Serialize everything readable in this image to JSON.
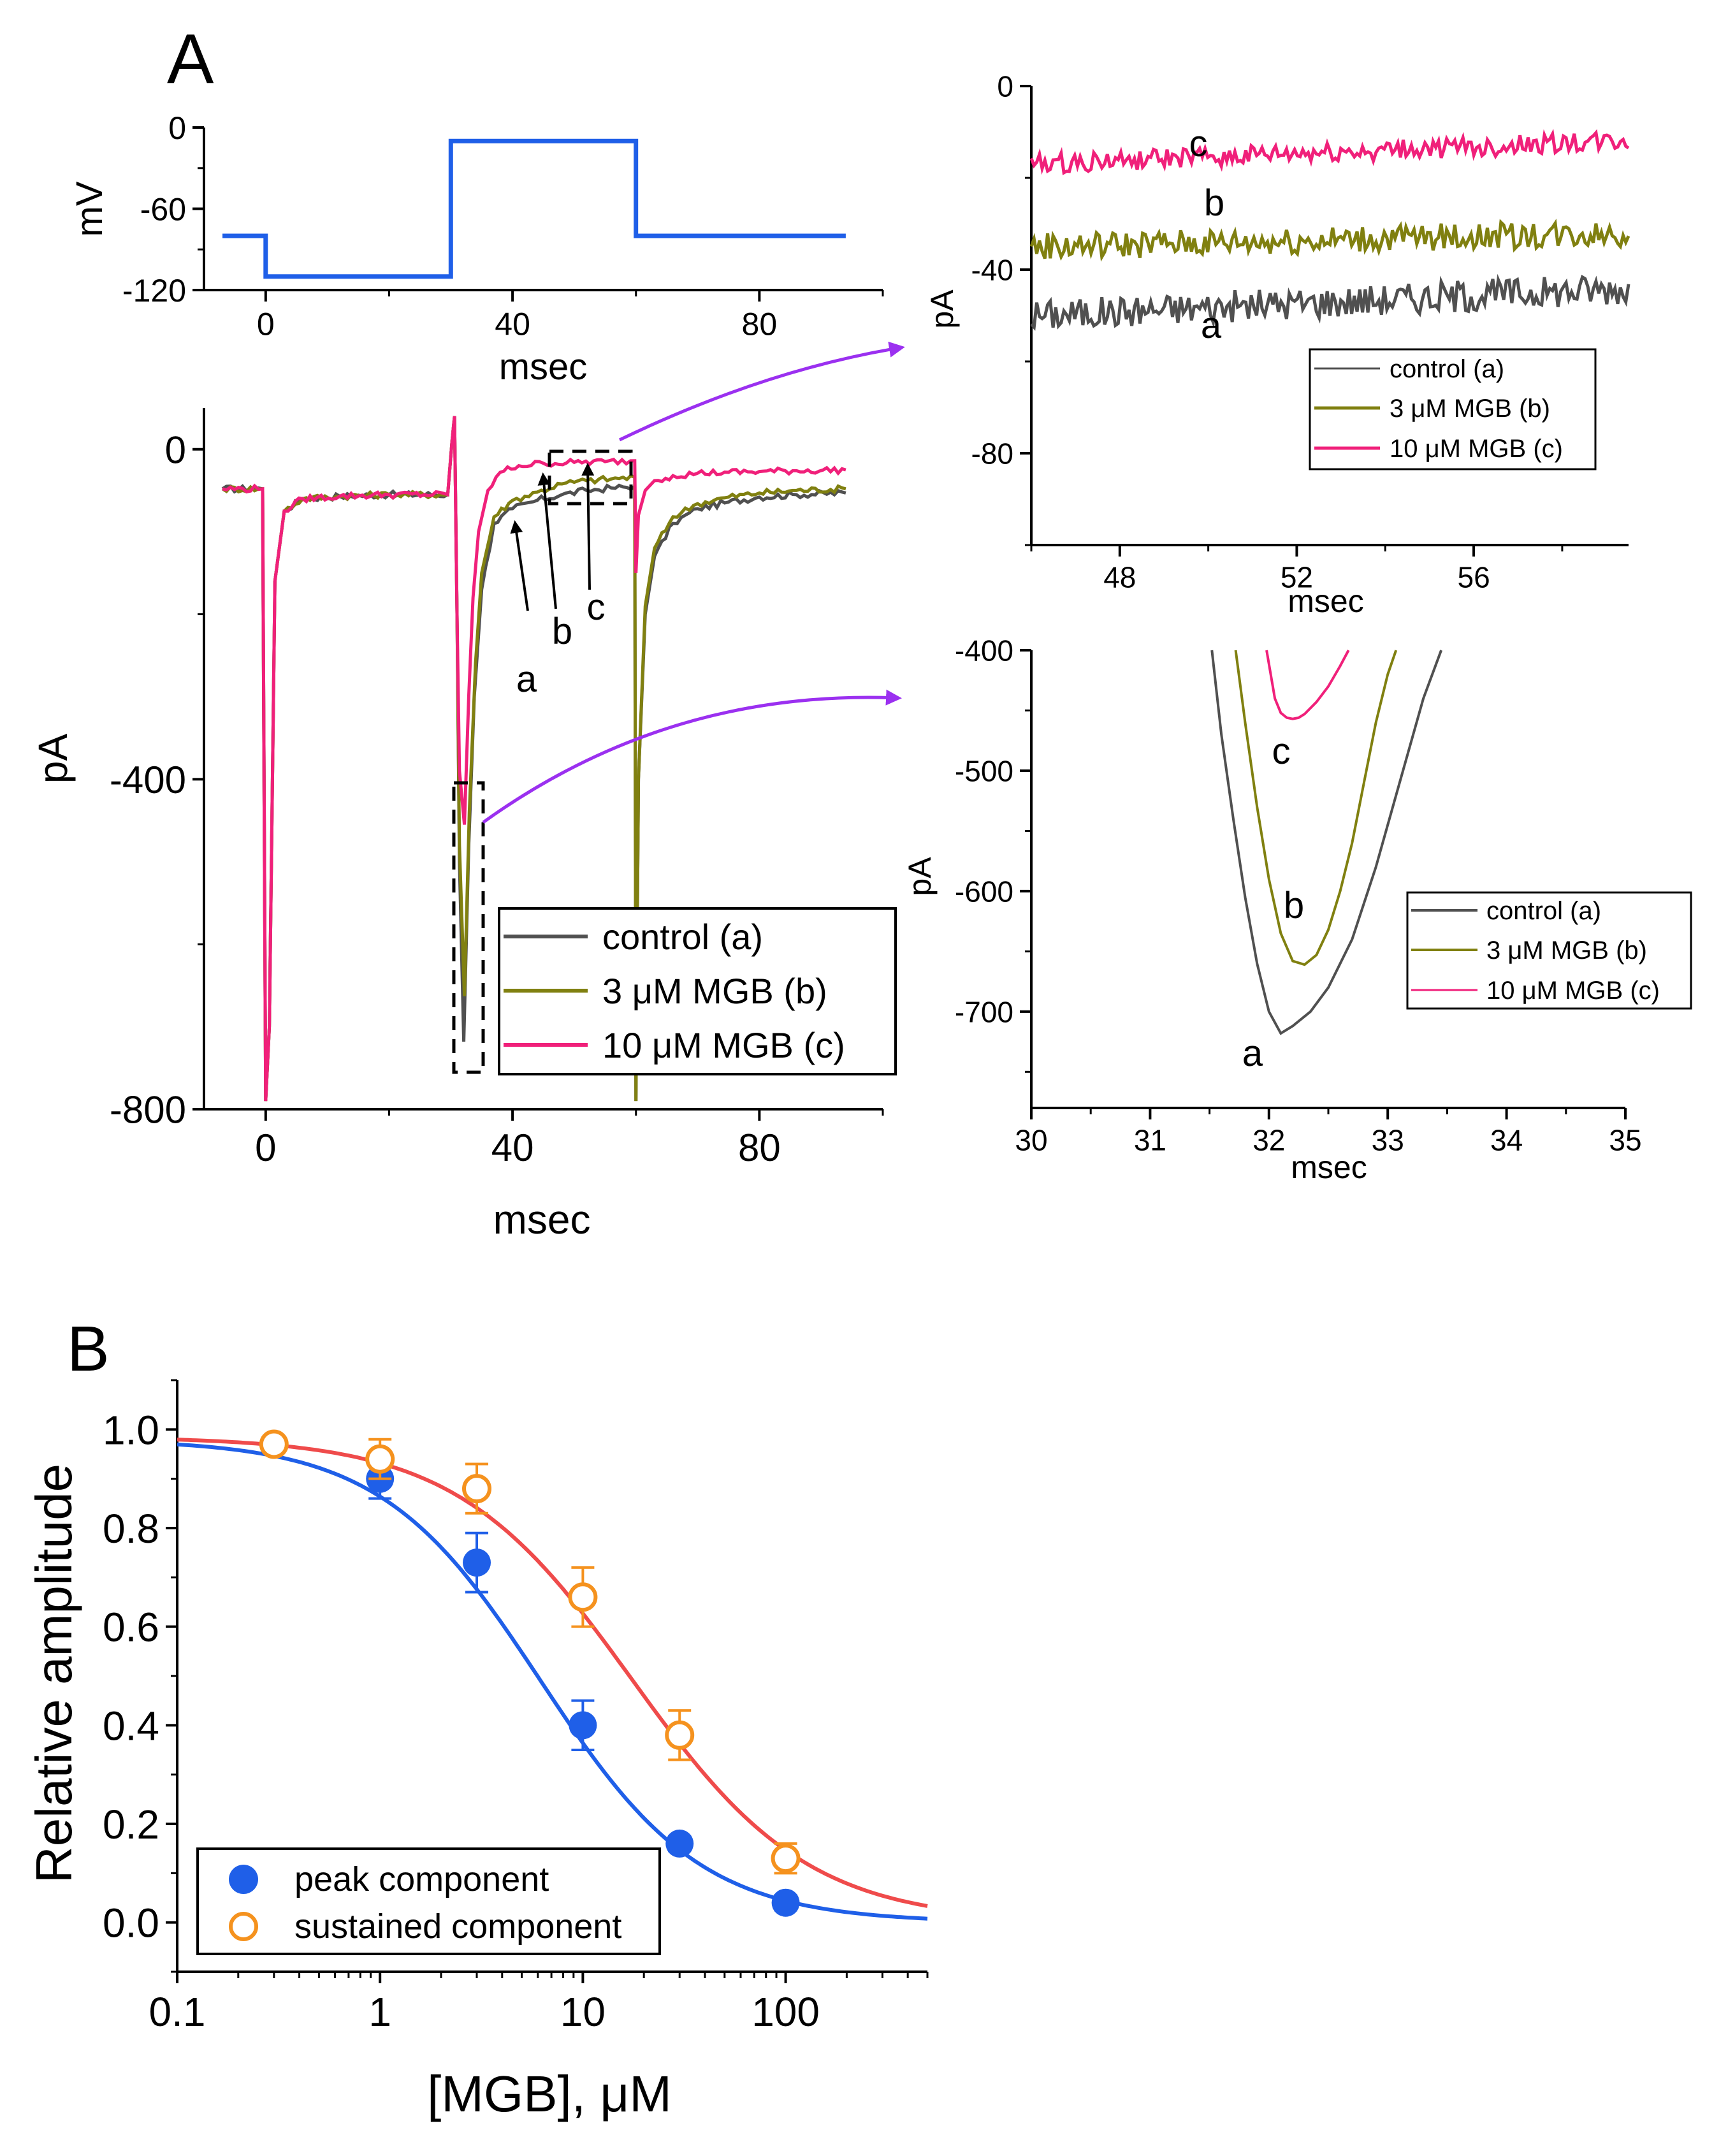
{
  "panel_labels": {
    "a": "A",
    "b": "B"
  },
  "colors": {
    "blue": "#1f5fe8",
    "control": "#505050",
    "mgb3": "#808010",
    "mgb10": "#f0207a",
    "arrow": "#9b30f0",
    "fit_blue": "#1f5fe8",
    "fit_red": "#ef4b4b",
    "open_orange": "#f5921e"
  },
  "chart_data": [
    {
      "id": "voltage-protocol",
      "type": "line",
      "title": "",
      "xlabel": "msec",
      "ylabel": "mV",
      "xlim": [
        -10,
        100
      ],
      "ylim": [
        -120,
        0
      ],
      "xticks": [
        0,
        40,
        80
      ],
      "yticks": [
        0,
        -60,
        -120
      ],
      "xtick_labels": [
        "0",
        "40",
        "80"
      ],
      "ytick_labels": [
        "0",
        "-60",
        "-120"
      ],
      "grid": false,
      "series": [
        {
          "color": "blue",
          "x": [
            -7,
            0,
            0,
            30,
            30,
            60,
            60,
            94
          ],
          "y": [
            -80,
            -80,
            -110,
            -110,
            -10,
            -10,
            -80,
            -80
          ]
        }
      ]
    },
    {
      "id": "current-traces",
      "type": "line",
      "title": "",
      "xlabel": "msec",
      "ylabel": "pA",
      "xlim": [
        -10,
        100
      ],
      "ylim": [
        -800,
        50
      ],
      "xticks": [
        0,
        40,
        80
      ],
      "yticks": [
        0,
        -400,
        -800
      ],
      "xtick_labels": [
        "0",
        "40",
        "80"
      ],
      "ytick_labels": [
        "0",
        "-400",
        "-800"
      ],
      "legend_position": "bottom-right",
      "legend": [
        "control (a)",
        "3 μM MGB (b)",
        "10 μM MGB (c)"
      ],
      "annotations": [
        "a",
        "b",
        "c"
      ],
      "series": [
        {
          "name": "control (a)",
          "color": "control",
          "x": [
            -7,
            -0.5,
            0,
            0.6,
            1.5,
            3,
            6,
            12,
            20,
            29.5,
            30.2,
            30.6,
            31,
            31.4,
            32.1,
            32.9,
            33.8,
            35,
            37,
            40,
            44,
            48,
            52,
            56,
            59.8,
            60,
            60.4,
            61.5,
            63,
            66,
            70,
            75,
            80,
            86,
            94
          ],
          "y": [
            -48,
            -48,
            -790,
            -700,
            -160,
            -75,
            -60,
            -57,
            -55,
            -55,
            10,
            40,
            -200,
            -500,
            -718,
            -480,
            -300,
            -170,
            -90,
            -72,
            -62,
            -55,
            -50,
            -47,
            -45,
            -790,
            -400,
            -200,
            -130,
            -90,
            -72,
            -64,
            -58,
            -55,
            -53
          ]
        },
        {
          "name": "3 μM MGB (b)",
          "color": "mgb3",
          "x": [
            -7,
            -0.5,
            0,
            0.6,
            1.5,
            3,
            6,
            12,
            20,
            29.5,
            30.2,
            30.6,
            31,
            31.4,
            32.2,
            33,
            34,
            35,
            37,
            40,
            44,
            48,
            52,
            56,
            59.8,
            60,
            60.4,
            61.5,
            63,
            66,
            70,
            75,
            80,
            86,
            94
          ],
          "y": [
            -48,
            -48,
            -790,
            -700,
            -160,
            -75,
            -60,
            -57,
            -55,
            -55,
            10,
            40,
            -200,
            -480,
            -663,
            -440,
            -260,
            -150,
            -82,
            -62,
            -52,
            -42,
            -38,
            -36,
            -34,
            -790,
            -400,
            -190,
            -120,
            -82,
            -66,
            -58,
            -53,
            -50,
            -48
          ]
        },
        {
          "name": "10 μM MGB (c)",
          "color": "mgb10",
          "x": [
            -7,
            -0.5,
            0,
            0.6,
            1.5,
            3,
            6,
            12,
            20,
            29.5,
            30.2,
            30.6,
            31,
            31.4,
            32.2,
            32.9,
            33.6,
            34.5,
            36,
            38,
            41,
            45,
            50,
            55,
            59.8,
            60,
            60.4,
            61.5,
            63,
            66,
            70,
            75,
            80,
            86,
            94
          ],
          "y": [
            -48,
            -48,
            -790,
            -700,
            -160,
            -75,
            -60,
            -57,
            -55,
            -55,
            10,
            40,
            -200,
            -390,
            -455,
            -300,
            -180,
            -100,
            -50,
            -28,
            -20,
            -17,
            -16,
            -15,
            -14,
            -150,
            -80,
            -50,
            -38,
            -32,
            -29,
            -28,
            -27,
            -26,
            -25
          ]
        }
      ]
    },
    {
      "id": "late-component-zoom",
      "type": "line",
      "title": "",
      "xlabel": "msec",
      "ylabel": "pA",
      "xlim": [
        46,
        59.5
      ],
      "ylim": [
        -100,
        0
      ],
      "xticks": [
        48,
        52,
        56
      ],
      "yticks": [
        0,
        -40,
        -80
      ],
      "xtick_labels": [
        "48",
        "52",
        "56"
      ],
      "ytick_labels": [
        "0",
        "-40",
        "-80"
      ],
      "legend_position": "right",
      "legend": [
        "control (a)",
        "3 μM MGB (b)",
        "10 μM MGB (c)"
      ],
      "annotations": [
        "a",
        "b",
        "c"
      ],
      "series": [
        {
          "name": "control (a)",
          "color": "control",
          "x_start": 46,
          "x_end": 59.5,
          "y_start": -50,
          "y_end": -44,
          "noise": 3.5
        },
        {
          "name": "3 μM MGB (b)",
          "color": "mgb3",
          "x_start": 46,
          "x_end": 59.5,
          "y_start": -35,
          "y_end": -32,
          "noise": 3
        },
        {
          "name": "10 μM MGB (c)",
          "color": "mgb10",
          "x_start": 46,
          "x_end": 59.5,
          "y_start": -17,
          "y_end": -12,
          "noise": 2.2
        }
      ]
    },
    {
      "id": "peak-component-zoom",
      "type": "line",
      "title": "",
      "xlabel": "msec",
      "ylabel": "pA",
      "xlim": [
        30,
        35
      ],
      "ylim": [
        -780,
        -400
      ],
      "xticks": [
        30,
        31,
        32,
        33,
        34,
        35
      ],
      "yticks": [
        -400,
        -500,
        -600,
        -700
      ],
      "xtick_labels": [
        "30",
        "31",
        "32",
        "33",
        "34",
        "35"
      ],
      "ytick_labels": [
        "-400",
        "-500",
        "-600",
        "-700"
      ],
      "legend_position": "right",
      "legend": [
        "control (a)",
        "3 μM MGB (b)",
        "10 μM MGB (c)"
      ],
      "annotations": [
        "a",
        "b",
        "c"
      ],
      "series": [
        {
          "name": "control (a)",
          "color": "control",
          "x": [
            31.52,
            31.6,
            31.7,
            31.8,
            31.9,
            32.0,
            32.1,
            32.2,
            32.35,
            32.5,
            32.7,
            32.9,
            33.1,
            33.3,
            33.45
          ],
          "y": [
            -400,
            -470,
            -540,
            -605,
            -660,
            -700,
            -718,
            -712,
            -700,
            -680,
            -640,
            -580,
            -510,
            -440,
            -400
          ]
        },
        {
          "name": "3 μM MGB (b)",
          "color": "mgb3",
          "x": [
            31.72,
            31.8,
            31.9,
            32.0,
            32.1,
            32.2,
            32.3,
            32.4,
            32.5,
            32.6,
            32.7,
            32.8,
            32.9,
            33.0,
            33.07
          ],
          "y": [
            -400,
            -460,
            -530,
            -590,
            -635,
            -658,
            -661,
            -653,
            -632,
            -600,
            -560,
            -510,
            -460,
            -420,
            -400
          ]
        },
        {
          "name": "10 μM MGB (c)",
          "color": "mgb10",
          "x": [
            31.98,
            32.05,
            32.1,
            32.15,
            32.2,
            32.25,
            32.3,
            32.4,
            32.5,
            32.6,
            32.67
          ],
          "y": [
            -400,
            -440,
            -452,
            -456,
            -457,
            -456,
            -453,
            -443,
            -430,
            -413,
            -400
          ]
        }
      ]
    },
    {
      "id": "concentration-response",
      "type": "scatter",
      "title": "",
      "xlabel": "[MGB], μM",
      "ylabel": "Relative amplitude",
      "xscale": "log",
      "xlim": [
        0.1,
        500
      ],
      "ylim": [
        -0.1,
        1.1
      ],
      "xticks": [
        0.1,
        1,
        10,
        100
      ],
      "yticks": [
        0.0,
        0.2,
        0.4,
        0.6,
        0.8,
        1.0
      ],
      "xtick_labels": [
        "0.1",
        "1",
        "10",
        "100"
      ],
      "ytick_labels": [
        "0.0",
        "0.2",
        "0.4",
        "0.6",
        "0.8",
        "1.0"
      ],
      "legend_position": "bottom-left",
      "series": [
        {
          "name": "peak component",
          "color": "blue",
          "marker": "filled-circle",
          "x": [
            0.3,
            1,
            3,
            10,
            30,
            100
          ],
          "y": [
            0.97,
            0.9,
            0.73,
            0.4,
            0.16,
            0.04
          ],
          "err": [
            0.01,
            0.04,
            0.06,
            0.05,
            0.015,
            0.015
          ]
        },
        {
          "name": "sustained component",
          "color": "open_orange",
          "marker": "open-circle",
          "x": [
            0.3,
            1,
            3,
            10,
            30,
            100
          ],
          "y": [
            0.97,
            0.94,
            0.88,
            0.66,
            0.38,
            0.13
          ],
          "err": [
            0.01,
            0.04,
            0.05,
            0.06,
            0.05,
            0.03
          ]
        }
      ],
      "fits": [
        {
          "color": "fit_blue",
          "ic50": 6.2,
          "hill": 1.1,
          "top": 0.98
        },
        {
          "color": "fit_red",
          "ic50": 17.5,
          "hill": 1.0,
          "top": 0.985
        }
      ]
    }
  ]
}
